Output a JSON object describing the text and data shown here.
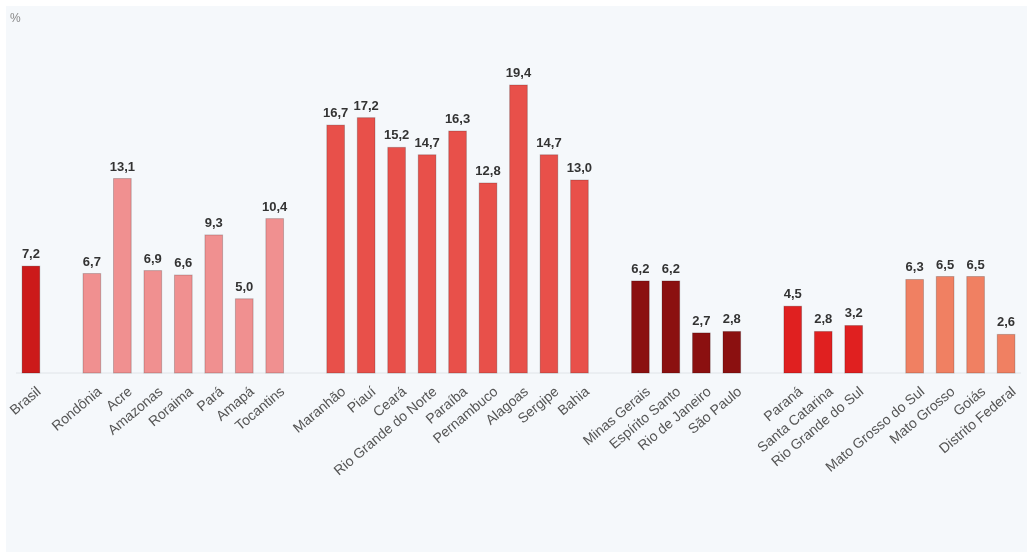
{
  "chart_data": {
    "type": "bar",
    "ylabel": "%",
    "categories": [
      "Brasil",
      null,
      "Rondônia",
      "Acre",
      "Amazonas",
      "Roraima",
      "Pará",
      "Amapá",
      "Tocantins",
      null,
      "Maranhão",
      "Piauí",
      "Ceará",
      "Rio Grande do Norte",
      "Paraíba",
      "Pernambuco",
      "Alagoas",
      "Sergipe",
      "Bahia",
      null,
      "Minas Gerais",
      "Espírito Santo",
      "Rio de Janeiro",
      "São Paulo",
      null,
      "Paraná",
      "Santa Catarina",
      "Rio Grande do Sul",
      null,
      "Mato Grosso do Sul",
      "Mato Grosso",
      "Goiás",
      "Distrito Federal"
    ],
    "values": [
      7.2,
      null,
      6.7,
      13.1,
      6.9,
      6.6,
      9.3,
      5.0,
      10.4,
      null,
      16.7,
      17.2,
      15.2,
      14.7,
      16.3,
      12.8,
      19.4,
      14.7,
      13.0,
      null,
      6.2,
      6.2,
      2.7,
      2.8,
      null,
      4.5,
      2.8,
      3.2,
      null,
      6.3,
      6.5,
      6.5,
      2.6
    ],
    "value_labels": [
      "7,2",
      null,
      "6,7",
      "13,1",
      "6,9",
      "6,6",
      "9,3",
      "5,0",
      "10,4",
      null,
      "16,7",
      "17,2",
      "15,2",
      "14,7",
      "16,3",
      "12,8",
      "19,4",
      "14,7",
      "13,0",
      null,
      "6,2",
      "6,2",
      "2,7",
      "2,8",
      null,
      "4,5",
      "2,8",
      "3,2",
      null,
      "6,3",
      "6,5",
      "6,5",
      "2,6"
    ],
    "colors": [
      "#cc1a1a",
      null,
      "#f09090",
      "#f09090",
      "#f09090",
      "#f09090",
      "#f09090",
      "#f09090",
      "#f09090",
      null,
      "#e8504a",
      "#e8504a",
      "#e8504a",
      "#e8504a",
      "#e8504a",
      "#e8504a",
      "#e8504a",
      "#e8504a",
      "#e8504a",
      null,
      "#8b1010",
      "#8b1010",
      "#8b1010",
      "#8b1010",
      null,
      "#e02020",
      "#e02020",
      "#e02020",
      null,
      "#f08062",
      "#f08062",
      "#f08062",
      "#f08062"
    ],
    "data_labels": true
  }
}
